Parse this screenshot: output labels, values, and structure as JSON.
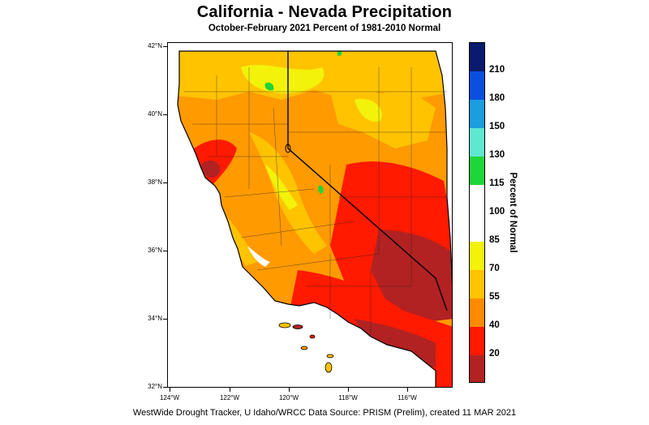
{
  "title": "California - Nevada Precipitation",
  "subtitle": "October-February 2021  Percent of 1981-2010 Normal",
  "footer": "WestWide Drought Tracker, U Idaho/WRCC Data Source: PRISM (Prelim), created 11 MAR 2021",
  "map": {
    "lat_labels": [
      "42°N",
      "40°N",
      "38°N",
      "36°N",
      "34°N",
      "32°N"
    ],
    "lon_labels": [
      "124°W",
      "122°W",
      "120°W",
      "118°W",
      "116°W"
    ]
  },
  "legend": {
    "title": "Percent of Normal",
    "labels": [
      "210",
      "180",
      "150",
      "130",
      "115",
      "100",
      "85",
      "70",
      "55",
      "40",
      "20"
    ],
    "colors": [
      "#0a1a6e",
      "#0b4fe0",
      "#1a9ee0",
      "#5ee8d0",
      "#1fd63a",
      "#ffffff",
      "#ffffff",
      "#f2f20a",
      "#ffc300",
      "#ff8a00",
      "#ff1a00",
      "#b22222"
    ]
  }
}
